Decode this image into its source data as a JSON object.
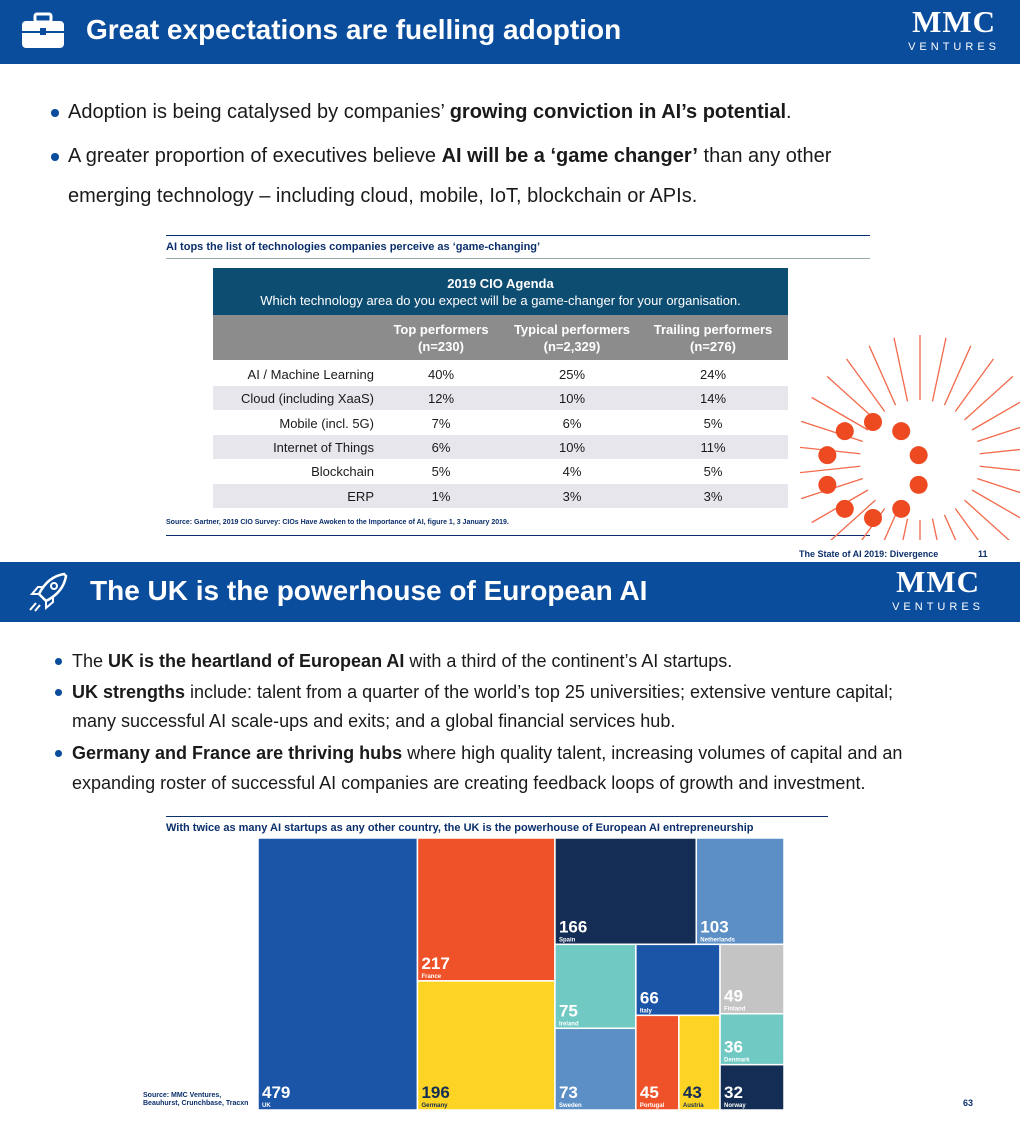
{
  "slide1": {
    "title": "Great expectations are fuelling adoption",
    "logo": "MMC",
    "logo_sub": "VENTURES",
    "bullets": [
      [
        [
          {
            "text": "Adoption is being catalysed by companies’ "
          },
          {
            "text": "growing conviction in AI’s potential",
            "bold": true
          },
          {
            "text": "."
          }
        ]
      ],
      [
        [
          {
            "text": "A greater proportion of executives believe "
          },
          {
            "text": "AI will be a ‘game changer’",
            "bold": true
          },
          {
            "text": " than any other"
          }
        ],
        [
          {
            "text": "emerging technology – including cloud, mobile, IoT, blockchain or APIs."
          }
        ]
      ]
    ],
    "figure_title": "AI tops the list of technologies companies perceive as ‘game-changing’",
    "table": {
      "title": "2019 CIO Agenda",
      "subtitle": "Which technology area do you expect will be a game-changer for your organisation.",
      "headers": [
        [
          "Top performers",
          "(n=230)"
        ],
        [
          "Typical performers",
          "(n=2,329)"
        ],
        [
          "Trailing performers",
          "(n=276)"
        ]
      ],
      "rows": [
        [
          "AI / Machine Learning",
          "40%",
          "25%",
          "24%"
        ],
        [
          "Cloud (including XaaS)",
          "12%",
          "10%",
          "14%"
        ],
        [
          "Mobile (incl. 5G)",
          "7%",
          "6%",
          "5%"
        ],
        [
          "Internet of Things",
          "6%",
          "10%",
          "11%"
        ],
        [
          "Blockchain",
          "5%",
          "4%",
          "5%"
        ],
        [
          "ERP",
          "1%",
          "3%",
          "3%"
        ]
      ]
    },
    "source": "Source: Gartner, 2019 CIO Survey: CIOs Have Awoken to the Importance of AI, figure 1, 3 January 2019.",
    "footer": "The State of AI 2019: Divergence",
    "page": "11"
  },
  "slide2": {
    "title": "The UK is the powerhouse of European AI",
    "logo": "MMC",
    "logo_sub": "VENTURES",
    "bullets": [
      [
        [
          {
            "text": "The "
          },
          {
            "text": "UK is the heartland of European AI",
            "bold": true
          },
          {
            "text": " with a third of the continent’s AI startups."
          }
        ]
      ],
      [
        [
          {
            "text": "UK strengths",
            "bold": true
          },
          {
            "text": " include: talent from a quarter of the world’s top 25 universities; extensive venture capital;"
          }
        ],
        [
          {
            "text": "many successful AI scale-ups and exits; and a global financial services hub."
          }
        ]
      ],
      [
        [
          {
            "text": "Germany and France are thriving hubs",
            "bold": true
          },
          {
            "text": " where high quality talent, increasing volumes of capital and an"
          }
        ],
        [
          {
            "text": "expanding roster of successful AI companies are creating feedback loops of growth and investment."
          }
        ]
      ]
    ],
    "source": [
      "Source: MMC Ventures,",
      "Beauhurst, Crunchbase, Tracxn"
    ],
    "page": "63"
  },
  "chart_data": {
    "type": "treemap",
    "title": "With twice as many AI startups as any other country, the UK is the powerhouse of European AI entrepreneurship",
    "categories": [
      "UK",
      "France",
      "Germany",
      "Spain",
      "Netherlands",
      "Ireland",
      "Sweden",
      "Italy",
      "Portugal",
      "Austria",
      "Finland",
      "Denmark",
      "Norway"
    ],
    "values": [
      479,
      217,
      196,
      166,
      103,
      75,
      73,
      66,
      45,
      43,
      49,
      36,
      32
    ],
    "colors": [
      "#1a55a8",
      "#ef5228",
      "#fdd424",
      "#132d55",
      "#5c8fc5",
      "#71c9c3",
      "#5c8fc5",
      "#1a55a8",
      "#ef5228",
      "#fdd424",
      "#c4c4c4",
      "#71c9c3",
      "#132d55"
    ]
  }
}
